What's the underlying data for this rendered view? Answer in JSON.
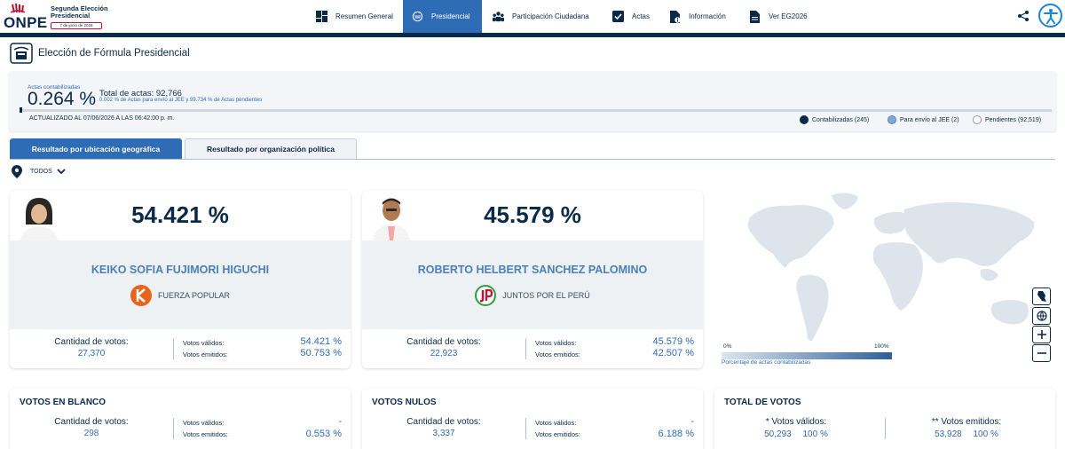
{
  "header": {
    "logo_text": "ONPE",
    "logo_title": "Segunda Elección Presidencial",
    "logo_date": "7 de junio de 2026",
    "nav": [
      {
        "label": "Resumen General",
        "icon": "grid-icon"
      },
      {
        "label": "Presidencial",
        "icon": "presidential-seal-icon",
        "active": true
      },
      {
        "label": "Participación Ciudadana",
        "icon": "people-icon"
      },
      {
        "label": "Actas",
        "icon": "checkbox-icon"
      },
      {
        "label": "Información",
        "icon": "info-document-icon"
      },
      {
        "label": "Ver EG2026",
        "icon": "document-icon"
      }
    ]
  },
  "section": {
    "title": "Elección de Fórmula Presidencial"
  },
  "progress": {
    "label": "Actas contabilizadas",
    "percent": "0.264 %",
    "total": "Total de actas: 92,766",
    "sub": "0.002 % de Actas para envío al JEE y 99.734 % de Actas pendientes",
    "updated": "ACTUALIZADO AL 07/06/2026 A LAS 06:42:00 p. m.",
    "fraction": 0.00264,
    "legend": [
      {
        "label": "Contabilizadas (245)",
        "color": "#0b2a4a"
      },
      {
        "label": "Para envío al JEE (2)",
        "color": "#7ea8d8"
      },
      {
        "label": "Pendientes (92,519)",
        "color": "#ffffff"
      }
    ]
  },
  "tabs": {
    "geo": "Resultado por ubicación geográfica",
    "org": "Resultado por organización política"
  },
  "filter": {
    "label": "TODOS"
  },
  "candidates": [
    {
      "percent": "54.421 %",
      "name": "KEIKO SOFIA FUJIMORI HIGUCHI",
      "party": "FUERZA POPULAR",
      "votes_label": "Cantidad de votos:",
      "votes": "27,370",
      "valid_label": "Votos válidos:",
      "valid_pct": "54.421 %",
      "emitted_label": "Votos emitidos:",
      "emitted_pct": "50.753 %"
    },
    {
      "percent": "45.579 %",
      "name": "ROBERTO HELBERT SANCHEZ PALOMINO",
      "party": "JUNTOS POR EL PERÚ",
      "votes_label": "Cantidad de votos:",
      "votes": "22,923",
      "valid_label": "Votos válidos:",
      "valid_pct": "45.579 %",
      "emitted_label": "Votos emitidos:",
      "emitted_pct": "42.507 %"
    }
  ],
  "map": {
    "scale_min": "0%",
    "scale_max": "100%",
    "scale_label": "Porcentaje de actas contabilizadas"
  },
  "blank": {
    "title": "VOTOS EN BLANCO",
    "votes_label": "Cantidad de votos:",
    "votes": "298",
    "valid_label": "Votos válidos:",
    "valid_pct": "-",
    "emitted_label": "Votos emitidos:",
    "emitted_pct": "0.553 %"
  },
  "null": {
    "title": "VOTOS NULOS",
    "votes_label": "Cantidad de votos:",
    "votes": "3,337",
    "valid_label": "Votos válidos:",
    "valid_pct": "-",
    "emitted_label": "Votos emitidos:",
    "emitted_pct": "6.188 %"
  },
  "total": {
    "title": "TOTAL DE VOTOS",
    "valid_label": "* Votos válidos:",
    "valid_votes": "50,293",
    "valid_pct": "100 %",
    "emitted_label": "** Votos emitidos:",
    "emitted_votes": "53,928",
    "emitted_pct": "100 %"
  }
}
